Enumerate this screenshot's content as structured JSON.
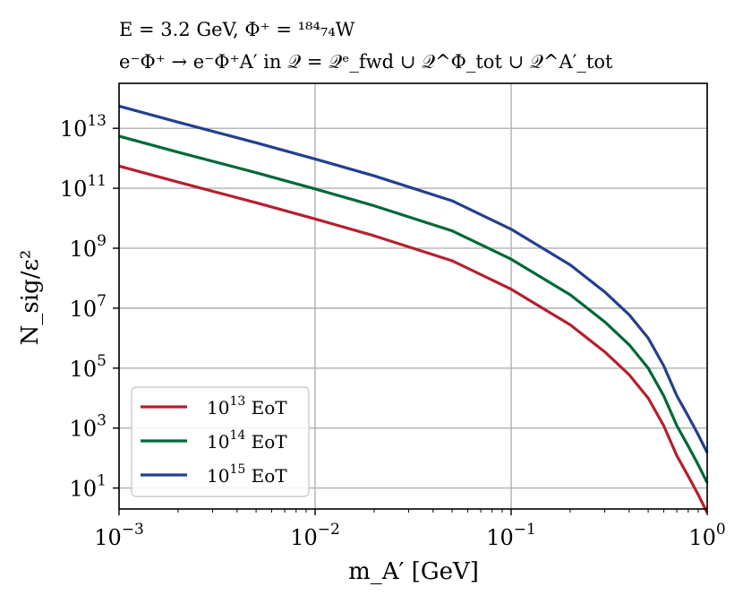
{
  "chart_data": {
    "type": "line",
    "title_line1": "E = 3.2 GeV, Φ⁺ = ¹⁸⁴₇₄W",
    "title_line2": "e⁻Φ⁺ → e⁻Φ⁺A′ in 𝒬 = 𝒬ᵉ_fwd ∪ 𝒬^Φ_tot ∪ 𝒬^A′_tot",
    "xlabel": "m_A′  [GeV]",
    "ylabel": "N_sig/ε²",
    "xscale": "log",
    "yscale": "log",
    "xlim": [
      0.001,
      1
    ],
    "ylim_log10": [
      0.3,
      14.5
    ],
    "xticks": [
      {
        "value": 0.001,
        "base": "10",
        "exp": "−3"
      },
      {
        "value": 0.01,
        "base": "10",
        "exp": "−2"
      },
      {
        "value": 0.1,
        "base": "10",
        "exp": "−1"
      },
      {
        "value": 1,
        "base": "10",
        "exp": "0"
      }
    ],
    "yticks": [
      {
        "value": 10,
        "base": "10",
        "exp": "1"
      },
      {
        "value": 1000,
        "base": "10",
        "exp": "3"
      },
      {
        "value": 100000,
        "base": "10",
        "exp": "5"
      },
      {
        "value": 10000000,
        "base": "10",
        "exp": "7"
      },
      {
        "value": 1000000000,
        "base": "10",
        "exp": "9"
      },
      {
        "value": 100000000000,
        "base": "10",
        "exp": "11"
      },
      {
        "value": 10000000000000,
        "base": "10",
        "exp": "13"
      }
    ],
    "grid": true,
    "legend_position": "lower-left",
    "series": [
      {
        "name": "10¹³ EoT",
        "name_base": "10",
        "name_exp": "13",
        "name_suffix": " EoT",
        "color": "#b5202e",
        "x": [
          0.001,
          0.002,
          0.005,
          0.01,
          0.02,
          0.05,
          0.1,
          0.2,
          0.3,
          0.4,
          0.5,
          0.6,
          0.7,
          0.8,
          0.9,
          1.0
        ],
        "y": [
          550000000000.0,
          160000000000.0,
          33000000000.0,
          9500000000.0,
          2600000000.0,
          380000000.0,
          43000000.0,
          2800000.0,
          350000.0,
          60000.0,
          10000.0,
          1200.0,
          120,
          25,
          6,
          1.5
        ]
      },
      {
        "name": "10¹⁴ EoT",
        "name_base": "10",
        "name_exp": "14",
        "name_suffix": " EoT",
        "color": "#006837",
        "x": [
          0.001,
          0.002,
          0.005,
          0.01,
          0.02,
          0.05,
          0.1,
          0.2,
          0.3,
          0.4,
          0.5,
          0.6,
          0.7,
          0.8,
          0.9,
          1.0
        ],
        "y": [
          5500000000000.0,
          1600000000000.0,
          330000000000.0,
          95000000000.0,
          26000000000.0,
          3800000000.0,
          430000000.0,
          28000000.0,
          3500000.0,
          600000.0,
          100000.0,
          12000.0,
          1200,
          250,
          60,
          15
        ]
      },
      {
        "name": "10¹⁵ EoT",
        "name_base": "10",
        "name_exp": "15",
        "name_suffix": " EoT",
        "color": "#23408e",
        "x": [
          0.001,
          0.002,
          0.005,
          0.01,
          0.02,
          0.05,
          0.1,
          0.2,
          0.3,
          0.4,
          0.5,
          0.6,
          0.7,
          0.8,
          0.9,
          1.0
        ],
        "y": [
          55000000000000.0,
          16000000000000.0,
          3300000000000.0,
          950000000000.0,
          260000000000.0,
          38000000000.0,
          4300000000.0,
          280000000.0,
          35000000.0,
          6000000.0,
          1000000.0,
          120000.0,
          12000.0,
          2500,
          600,
          150
        ]
      }
    ]
  }
}
